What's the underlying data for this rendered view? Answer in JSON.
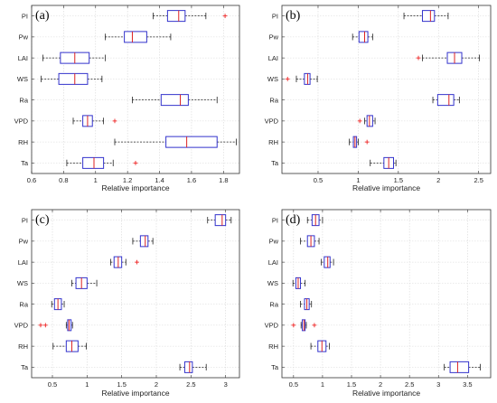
{
  "figure": {
    "description_panels": 4
  },
  "chart_data": [
    {
      "type": "boxplot",
      "panel_label": "(a)",
      "xlabel": "Relative importance",
      "xlim": [
        0.6,
        1.9
      ],
      "xticks": [
        0.6,
        0.8,
        1,
        1.2,
        1.4,
        1.6,
        1.8
      ],
      "xtick_labels": [
        "0.6",
        "0.8",
        "1",
        "1.2",
        "1.4",
        "1.6",
        "1.8"
      ],
      "categories": [
        "PI",
        "Pw",
        "LAI",
        "WS",
        "Ra",
        "VPD",
        "RH",
        "Ta"
      ],
      "boxes": [
        {
          "name": "PI",
          "whisker_low": 1.36,
          "q1": 1.45,
          "median": 1.52,
          "q3": 1.56,
          "whisker_high": 1.69,
          "outliers": [
            1.81
          ]
        },
        {
          "name": "Pw",
          "whisker_low": 1.06,
          "q1": 1.18,
          "median": 1.23,
          "q3": 1.32,
          "whisker_high": 1.47,
          "outliers": []
        },
        {
          "name": "LAI",
          "whisker_low": 0.67,
          "q1": 0.78,
          "median": 0.87,
          "q3": 0.96,
          "whisker_high": 1.06,
          "outliers": []
        },
        {
          "name": "WS",
          "whisker_low": 0.66,
          "q1": 0.77,
          "median": 0.87,
          "q3": 0.95,
          "whisker_high": 1.04,
          "outliers": []
        },
        {
          "name": "Ra",
          "whisker_low": 1.23,
          "q1": 1.41,
          "median": 1.53,
          "q3": 1.58,
          "whisker_high": 1.76,
          "outliers": []
        },
        {
          "name": "VPD",
          "whisker_low": 0.86,
          "q1": 0.92,
          "median": 0.95,
          "q3": 0.98,
          "whisker_high": 1.05,
          "outliers": [
            1.12
          ]
        },
        {
          "name": "RH",
          "whisker_low": 1.12,
          "q1": 1.44,
          "median": 1.57,
          "q3": 1.76,
          "whisker_high": 1.88,
          "outliers": []
        },
        {
          "name": "Ta",
          "whisker_low": 0.82,
          "q1": 0.92,
          "median": 0.99,
          "q3": 1.05,
          "whisker_high": 1.11,
          "outliers": [
            1.25
          ]
        }
      ],
      "grid": true
    },
    {
      "type": "boxplot",
      "panel_label": "(b)",
      "xlabel": "Relative importance",
      "xlim": [
        0.05,
        2.65
      ],
      "xticks": [
        0.5,
        1,
        1.5,
        2,
        2.5
      ],
      "xtick_labels": [
        "0.5",
        "1",
        "1.5",
        "2",
        "2.5"
      ],
      "categories": [
        "PI",
        "Pw",
        "LAI",
        "WS",
        "Ra",
        "VPD",
        "RH",
        "Ta"
      ],
      "boxes": [
        {
          "name": "PI",
          "whisker_low": 1.57,
          "q1": 1.8,
          "median": 1.9,
          "q3": 1.95,
          "whisker_high": 2.12,
          "outliers": []
        },
        {
          "name": "Pw",
          "whisker_low": 0.93,
          "q1": 1.01,
          "median": 1.08,
          "q3": 1.12,
          "whisker_high": 1.18,
          "outliers": []
        },
        {
          "name": "LAI",
          "whisker_low": 1.8,
          "q1": 2.11,
          "median": 2.2,
          "q3": 2.29,
          "whisker_high": 2.51,
          "outliers": [
            1.75
          ]
        },
        {
          "name": "WS",
          "whisker_low": 0.23,
          "q1": 0.33,
          "median": 0.37,
          "q3": 0.4,
          "whisker_high": 0.49,
          "outliers": [
            0.12
          ]
        },
        {
          "name": "Ra",
          "whisker_low": 1.93,
          "q1": 1.99,
          "median": 2.13,
          "q3": 2.19,
          "whisker_high": 2.26,
          "outliers": []
        },
        {
          "name": "VPD",
          "whisker_low": 1.08,
          "q1": 1.11,
          "median": 1.14,
          "q3": 1.18,
          "whisker_high": 1.21,
          "outliers": [
            1.02
          ]
        },
        {
          "name": "RH",
          "whisker_low": 0.89,
          "q1": 0.94,
          "median": 0.96,
          "q3": 0.98,
          "whisker_high": 1.0,
          "outliers": [
            1.11
          ]
        },
        {
          "name": "Ta",
          "whisker_low": 1.15,
          "q1": 1.32,
          "median": 1.38,
          "q3": 1.44,
          "whisker_high": 1.47,
          "outliers": []
        }
      ],
      "grid": true
    },
    {
      "type": "boxplot",
      "panel_label": "(c)",
      "xlabel": "Relative importance",
      "xlim": [
        0.2,
        3.2
      ],
      "xticks": [
        0.5,
        1,
        1.5,
        2,
        2.5,
        3
      ],
      "xtick_labels": [
        "0.5",
        "1",
        "1.5",
        "2",
        "2.5",
        "3"
      ],
      "categories": [
        "PI",
        "Pw",
        "LAI",
        "WS",
        "Ra",
        "VPD",
        "RH",
        "Ta"
      ],
      "boxes": [
        {
          "name": "PI",
          "whisker_low": 2.74,
          "q1": 2.85,
          "median": 2.95,
          "q3": 3.0,
          "whisker_high": 3.08,
          "outliers": []
        },
        {
          "name": "Pw",
          "whisker_low": 1.66,
          "q1": 1.77,
          "median": 1.84,
          "q3": 1.88,
          "whisker_high": 1.95,
          "outliers": []
        },
        {
          "name": "LAI",
          "whisker_low": 1.34,
          "q1": 1.39,
          "median": 1.45,
          "q3": 1.5,
          "whisker_high": 1.56,
          "outliers": [
            1.72
          ]
        },
        {
          "name": "WS",
          "whisker_low": 0.78,
          "q1": 0.84,
          "median": 0.92,
          "q3": 1.0,
          "whisker_high": 1.14,
          "outliers": []
        },
        {
          "name": "Ra",
          "whisker_low": 0.49,
          "q1": 0.53,
          "median": 0.58,
          "q3": 0.63,
          "whisker_high": 0.67,
          "outliers": []
        },
        {
          "name": "VPD",
          "whisker_low": 0.7,
          "q1": 0.72,
          "median": 0.74,
          "q3": 0.77,
          "whisker_high": 0.79,
          "outliers": [
            0.33,
            0.4
          ]
        },
        {
          "name": "RH",
          "whisker_low": 0.51,
          "q1": 0.7,
          "median": 0.78,
          "q3": 0.87,
          "whisker_high": 0.99,
          "outliers": []
        },
        {
          "name": "Ta",
          "whisker_low": 2.34,
          "q1": 2.41,
          "median": 2.48,
          "q3": 2.52,
          "whisker_high": 2.72,
          "outliers": []
        }
      ],
      "grid": true
    },
    {
      "type": "boxplot",
      "panel_label": "(d)",
      "xlabel": "Relative importance",
      "xlim": [
        0.3,
        3.9
      ],
      "xticks": [
        0.5,
        1,
        1.5,
        2,
        2.5,
        3,
        3.5
      ],
      "xtick_labels": [
        "0.5",
        "1",
        "1.5",
        "2",
        "2.5",
        "3",
        "3.5"
      ],
      "categories": [
        "PI",
        "Pw",
        "LAI",
        "WS",
        "Ra",
        "VPD",
        "RH",
        "Ta"
      ],
      "boxes": [
        {
          "name": "PI",
          "whisker_low": 0.74,
          "q1": 0.82,
          "median": 0.88,
          "q3": 0.94,
          "whisker_high": 1.0,
          "outliers": []
        },
        {
          "name": "Pw",
          "whisker_low": 0.62,
          "q1": 0.74,
          "median": 0.8,
          "q3": 0.86,
          "whisker_high": 0.94,
          "outliers": []
        },
        {
          "name": "LAI",
          "whisker_low": 0.98,
          "q1": 1.03,
          "median": 1.09,
          "q3": 1.13,
          "whisker_high": 1.19,
          "outliers": []
        },
        {
          "name": "WS",
          "whisker_low": 0.49,
          "q1": 0.54,
          "median": 0.58,
          "q3": 0.62,
          "whisker_high": 0.7,
          "outliers": []
        },
        {
          "name": "Ra",
          "whisker_low": 0.62,
          "q1": 0.69,
          "median": 0.73,
          "q3": 0.77,
          "whisker_high": 0.81,
          "outliers": []
        },
        {
          "name": "VPD",
          "whisker_low": 0.63,
          "q1": 0.65,
          "median": 0.68,
          "q3": 0.7,
          "whisker_high": 0.72,
          "outliers": [
            0.5,
            0.86
          ]
        },
        {
          "name": "RH",
          "whisker_low": 0.8,
          "q1": 0.92,
          "median": 0.99,
          "q3": 1.06,
          "whisker_high": 1.12,
          "outliers": []
        },
        {
          "name": "Ta",
          "whisker_low": 3.1,
          "q1": 3.2,
          "median": 3.33,
          "q3": 3.52,
          "whisker_high": 3.72,
          "outliers": []
        }
      ],
      "grid": true
    }
  ],
  "colors": {
    "box": "#3333cc",
    "median": "#dd2222",
    "whisker": "#222222",
    "outlier": "#ee2222",
    "grid": "#d7d7d7",
    "axes": "#333333"
  }
}
